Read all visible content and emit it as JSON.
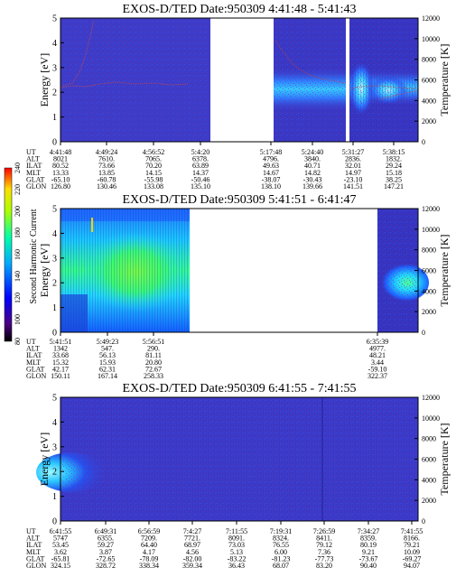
{
  "chart_data": [
    {
      "type": "heatmap",
      "title": "EXOS-D/TED   Date:950309   4:41:48 - 5:41:43",
      "ylabel": "Energy [eV]",
      "y2label": "Temperature [K]",
      "ylim": [
        0,
        5
      ],
      "y2lim": [
        0,
        12000
      ],
      "yticks": [
        "0",
        "1",
        "2",
        "3",
        "4",
        "5"
      ],
      "y2ticks": [
        "0",
        "2000",
        "4000",
        "6000",
        "8000",
        "10000",
        "12000"
      ],
      "orbit_table": {
        "row_labels": [
          "UT",
          "ALT",
          "ILAT",
          "MLT",
          "GLAT",
          "GLON"
        ],
        "columns": [
          [
            "4:41:48",
            "8021",
            "80.52",
            "13.33",
            "-65.10",
            "126.80"
          ],
          [
            "4:49:24",
            "7610.",
            "73.66",
            "13.85",
            "-60.78",
            "130.46"
          ],
          [
            "4:56:52",
            "7065.",
            "70.20",
            "14.15",
            "-55.98",
            "133.08"
          ],
          [
            "5:4:20",
            "6378.",
            "63.89",
            "14.37",
            "-50.46",
            "135.10"
          ],
          [
            "5:17:48",
            "4796.",
            "49.63",
            "14.67",
            "-38.07",
            "138.10"
          ],
          [
            "5:24:40",
            "3840.",
            "40.71",
            "14.82",
            "-30.43",
            "139.66"
          ],
          [
            "5:31:27",
            "2836.",
            "32.01",
            "14.97",
            "-23.10",
            "141.51"
          ],
          [
            "5:38:15",
            "1832.",
            "29.24",
            "15.18",
            "38.25",
            "147.21"
          ]
        ]
      }
    },
    {
      "type": "heatmap",
      "title": "EXOS-D/TED   Date:950309   5:41:51 - 6:41:47",
      "ylabel": "Energy [eV]",
      "y2label": "Temperature [K]",
      "ylim": [
        0,
        5
      ],
      "y2lim": [
        0,
        12000
      ],
      "yticks": [
        "0",
        "1",
        "2",
        "3",
        "4",
        "5"
      ],
      "y2ticks": [
        "0",
        "2000",
        "4000",
        "6000",
        "8000",
        "10000",
        "12000"
      ],
      "colorbar": {
        "label": "Second Harmonic Current",
        "range": [
          80,
          240
        ],
        "ticks": [
          "80",
          "100",
          "120",
          "140",
          "160",
          "180",
          "200",
          "220",
          "240"
        ]
      },
      "orbit_table": {
        "row_labels": [
          "UT",
          "ALT",
          "ILAT",
          "MLT",
          "GLAT",
          "GLON"
        ],
        "columns": [
          [
            "5:41:51",
            "1342",
            "33.68",
            "15.32",
            "42.17",
            "150.11"
          ],
          [
            "5:49:23",
            "547.",
            "56.13",
            "15.93",
            "62.31",
            "167.14"
          ],
          [
            "5:56:51",
            "290.",
            "81.11",
            "20.80",
            "72.67",
            "258.33"
          ],
          [
            "6:35:39",
            "4977.",
            "48.21",
            "3.44",
            "-59.10",
            "322.37"
          ]
        ]
      }
    },
    {
      "type": "heatmap",
      "title": "EXOS-D/TED   Date:950309   6:41:55 - 7:41:55",
      "ylabel": "Energy [eV]",
      "y2label": "Temperature [K]",
      "ylim": [
        0,
        5
      ],
      "y2lim": [
        0,
        12000
      ],
      "yticks": [
        "0",
        "1",
        "2",
        "3",
        "4",
        "5"
      ],
      "y2ticks": [
        "0",
        "2000",
        "4000",
        "6000",
        "8000",
        "10000",
        "12000"
      ],
      "orbit_table": {
        "row_labels": [
          "UT",
          "ALT",
          "ILAT",
          "MLT",
          "GLAT",
          "GLON"
        ],
        "columns": [
          [
            "6:41:55",
            "5747",
            "53.45",
            "3.62",
            "-65.81",
            "324.15"
          ],
          [
            "6:49:31",
            "6355.",
            "59.27",
            "3.87",
            "-72.65",
            "328.72"
          ],
          [
            "6:56:59",
            "7209.",
            "64.40",
            "4.17",
            "-78.09",
            "338.34"
          ],
          [
            "7:4:27",
            "7721.",
            "68.97",
            "4.56",
            "-82.00",
            "359.34"
          ],
          [
            "7:11:55",
            "8091.",
            "73.03",
            "5.13",
            "-83.22",
            "36.43"
          ],
          [
            "7:19:31",
            "8324.",
            "76.55",
            "6.00",
            "-81.23",
            "68.07"
          ],
          [
            "7:26:59",
            "8411.",
            "79.12",
            "7.36",
            "-77.73",
            "83.20"
          ],
          [
            "7:34:27",
            "8359.",
            "80.19",
            "9.21",
            "-73.67",
            "90.40"
          ],
          [
            "7:41:55",
            "8166.",
            "79.21",
            "10.09",
            "-69.27",
            "94.07"
          ]
        ]
      }
    }
  ]
}
